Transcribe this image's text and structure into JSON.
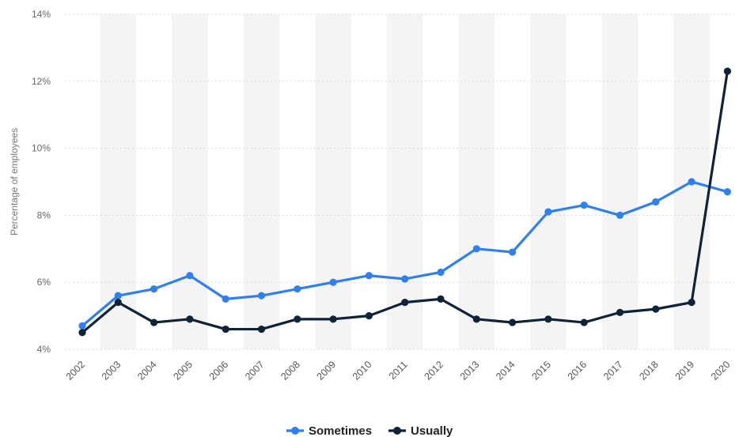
{
  "chart_data": {
    "type": "line",
    "ylabel": "Percentage of employees",
    "ylim": [
      4,
      14
    ],
    "y_ticks": [
      4,
      6,
      8,
      10,
      12,
      14
    ],
    "y_tick_labels": [
      "4%",
      "6%",
      "8%",
      "10%",
      "12%",
      "14%"
    ],
    "categories": [
      "2002",
      "2003",
      "2004",
      "2005",
      "2006",
      "2007",
      "2008",
      "2009",
      "2010",
      "2011",
      "2012",
      "2013",
      "2014",
      "2015",
      "2016",
      "2017",
      "2018",
      "2019",
      "2020"
    ],
    "series": [
      {
        "name": "Sometimes",
        "color": "#2f80ed",
        "values": [
          4.7,
          5.6,
          5.8,
          6.2,
          5.5,
          5.6,
          5.8,
          6.0,
          6.2,
          6.1,
          6.3,
          7.0,
          6.9,
          8.1,
          8.3,
          8.0,
          8.4,
          9.0,
          8.7
        ]
      },
      {
        "name": "Usually",
        "color": "#0e2238",
        "values": [
          4.5,
          5.4,
          4.8,
          4.9,
          4.6,
          4.6,
          4.9,
          4.9,
          5.0,
          5.4,
          5.5,
          4.9,
          4.8,
          4.9,
          4.8,
          5.1,
          5.2,
          5.4,
          12.3
        ]
      }
    ],
    "grid": true,
    "legend_position": "bottom-center"
  }
}
